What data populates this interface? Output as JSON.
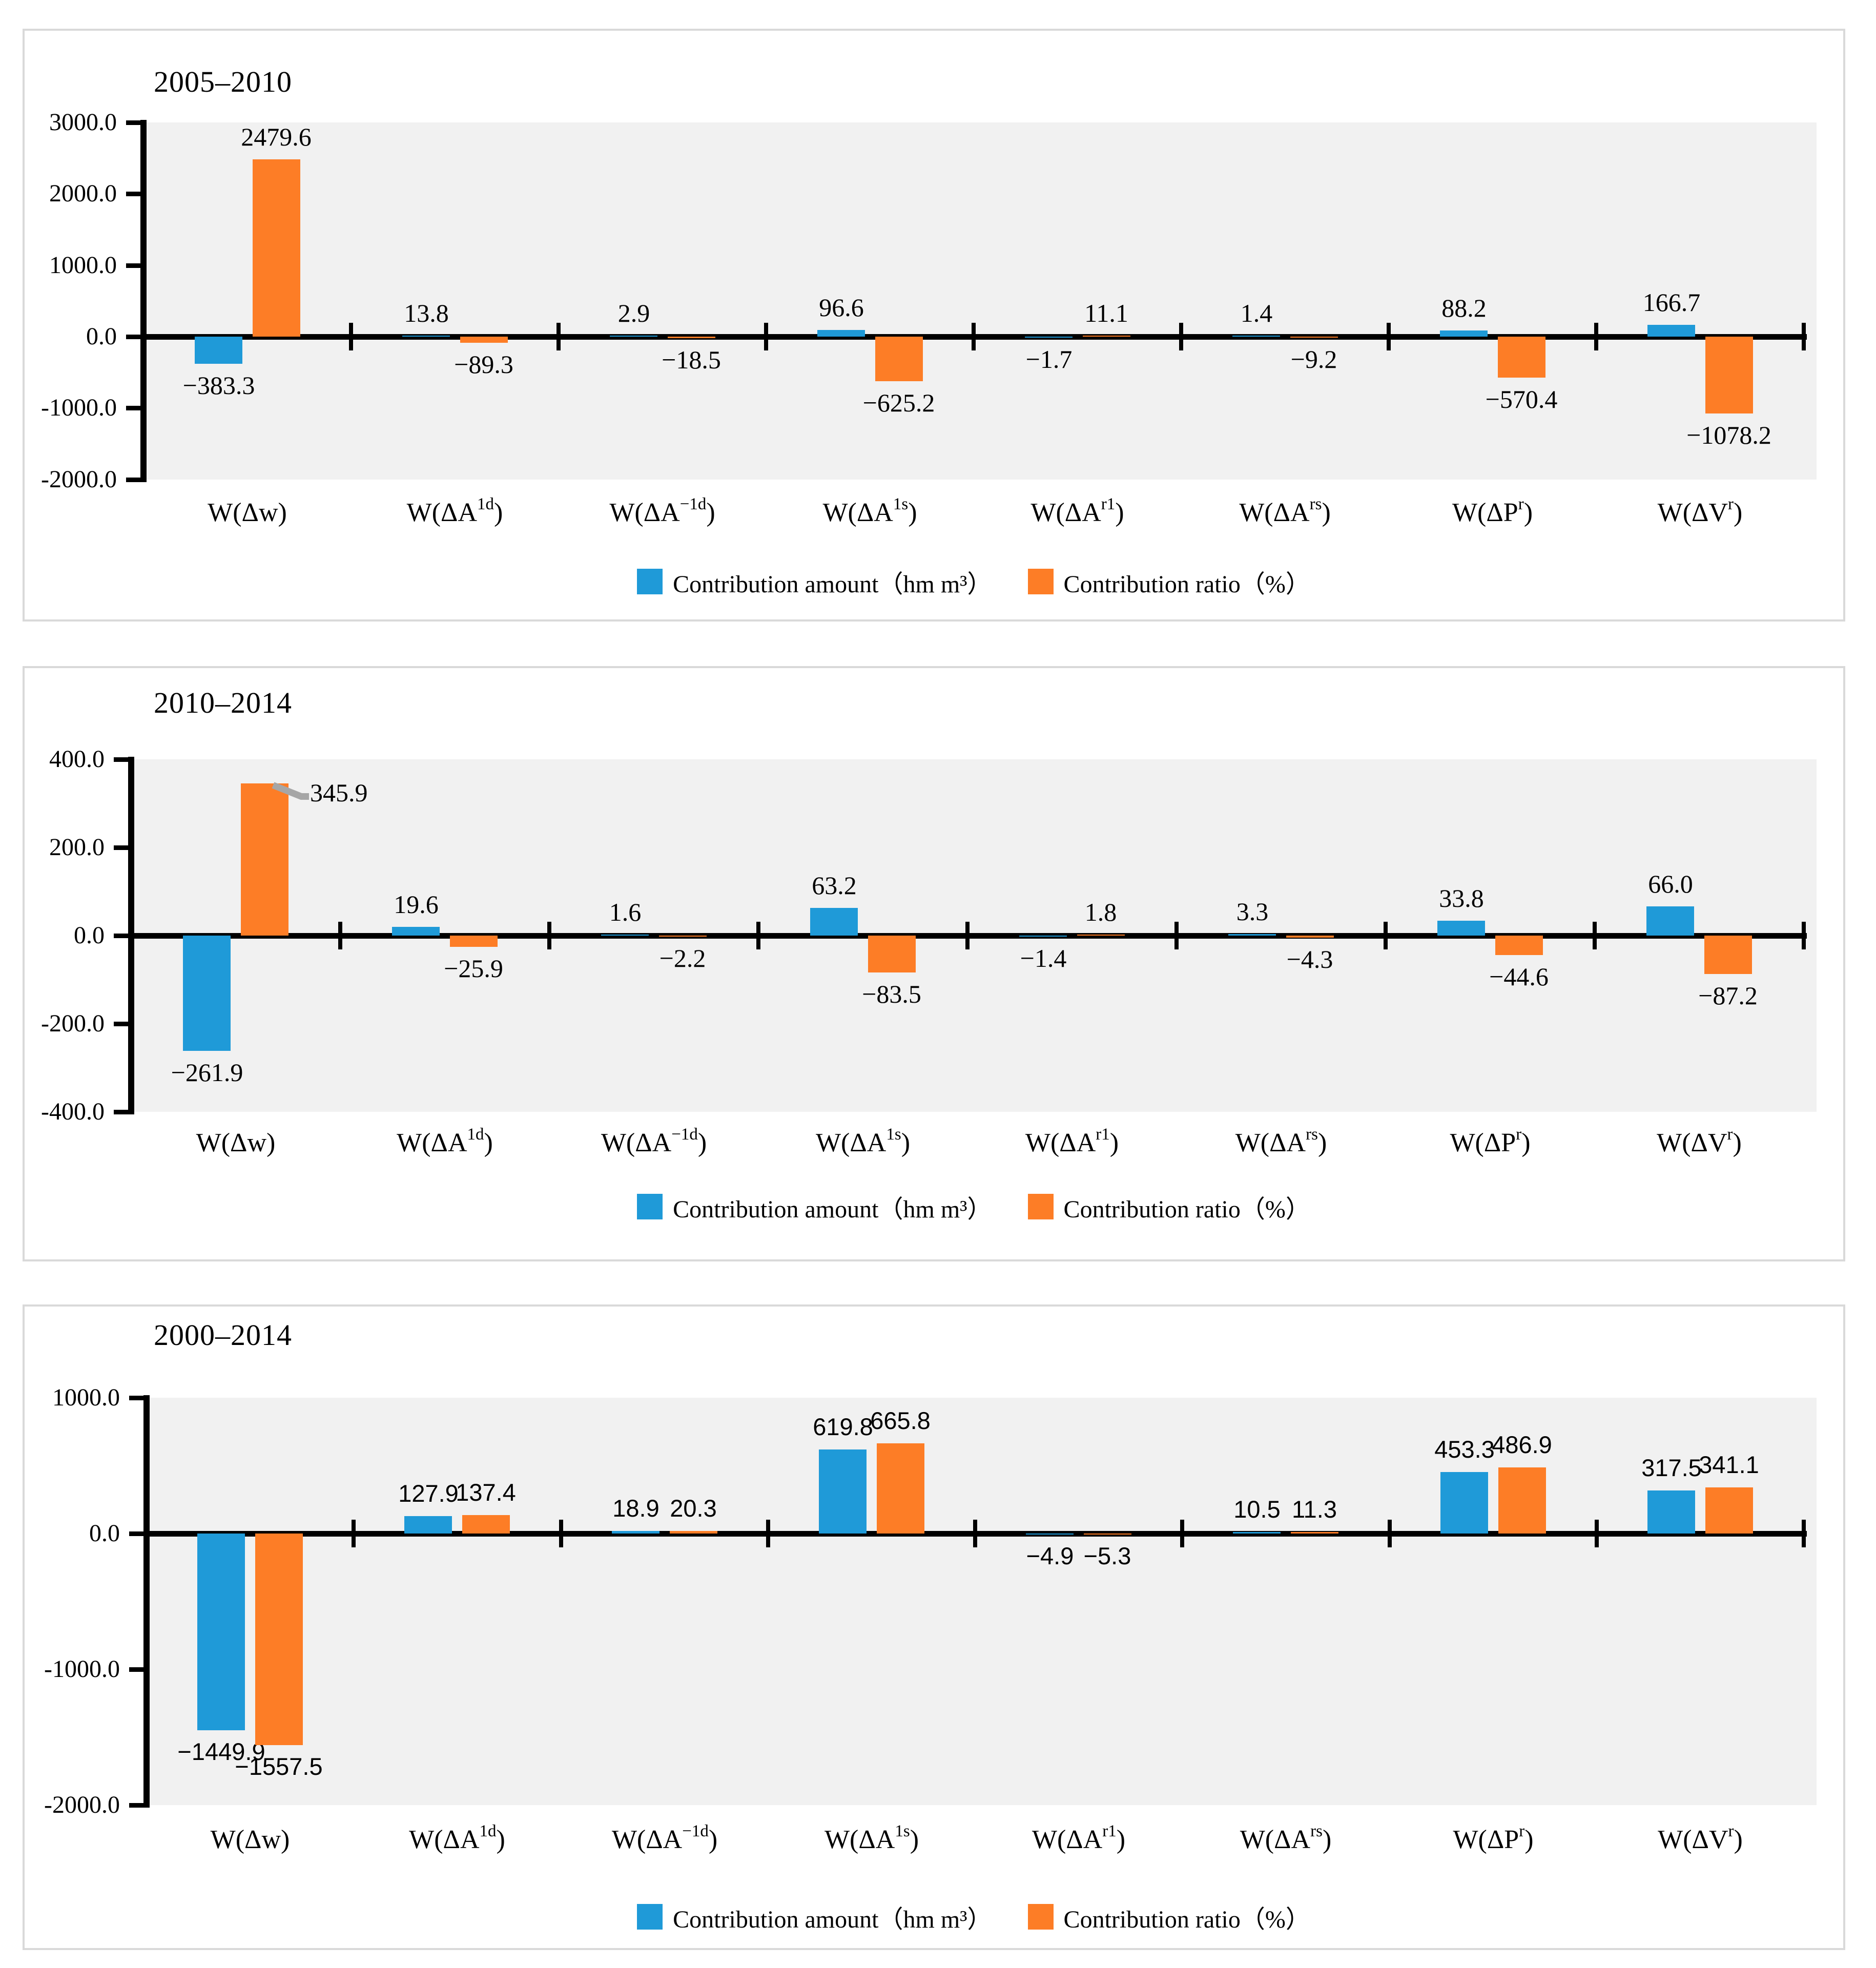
{
  "colors": {
    "amount": "#1F9AD8",
    "ratio": "#FD7D26",
    "plot_bg": "#F1F1F1",
    "panel_border": "#D9D9D9",
    "axis": "#000000",
    "leader_line": "#A6A6A6",
    "text": "#000000",
    "background": "#FFFFFF"
  },
  "legend": {
    "amount_label": "Contribution amount（hm m³）",
    "ratio_label": "Contribution ratio（%）"
  },
  "categories": [
    {
      "pre": "W(Δw",
      "sup": "",
      "post": ")"
    },
    {
      "pre": "W(ΔA",
      "sup": "1d",
      "post": ")"
    },
    {
      "pre": "W(ΔA",
      "sup": "−1d",
      "post": ")"
    },
    {
      "pre": "W(ΔA",
      "sup": "1s",
      "post": ")"
    },
    {
      "pre": "W(ΔA",
      "sup": "r1",
      "post": ")"
    },
    {
      "pre": "W(ΔA",
      "sup": "rs",
      "post": ")"
    },
    {
      "pre": "W(ΔP",
      "sup": "r",
      "post": ")"
    },
    {
      "pre": "W(ΔV",
      "sup": "r",
      "post": ")"
    }
  ],
  "chart_data": [
    {
      "type": "bar",
      "title": "2005–2010",
      "categories": [
        "W(Δw)",
        "W(ΔA1d)",
        "W(ΔA-1d)",
        "W(ΔA1s)",
        "W(ΔAr1)",
        "W(ΔArs)",
        "W(ΔPr)",
        "W(ΔVr)"
      ],
      "series": [
        {
          "name": "Contribution amount (hm m³)",
          "color_key": "amount",
          "values": [
            -383.3,
            13.8,
            2.9,
            96.6,
            -1.7,
            1.4,
            88.2,
            166.7
          ]
        },
        {
          "name": "Contribution ratio (%)",
          "color_key": "ratio",
          "values": [
            2479.6,
            -89.3,
            -18.5,
            -625.2,
            11.1,
            -9.2,
            -570.4,
            -1078.2
          ]
        }
      ],
      "ylim": [
        -2000,
        3000
      ],
      "grid": false,
      "legend_position": "bottom",
      "yticks": [
        {
          "label": "3000.0",
          "value": 3000
        },
        {
          "label": "2000.0",
          "value": 2000
        },
        {
          "label": "1000.0",
          "value": 1000
        },
        {
          "label": "0.0",
          "value": 0
        },
        {
          "label": "-1000.0",
          "value": -1000
        },
        {
          "label": "-2000.0",
          "value": -2000
        }
      ]
    },
    {
      "type": "bar",
      "title": "2010–2014",
      "categories": [
        "W(Δw)",
        "W(ΔA1d)",
        "W(ΔA-1d)",
        "W(ΔA1s)",
        "W(ΔAr1)",
        "W(ΔArs)",
        "W(ΔPr)",
        "W(ΔVr)"
      ],
      "series": [
        {
          "name": "Contribution amount (hm m³)",
          "color_key": "amount",
          "values": [
            -261.9,
            19.6,
            1.6,
            63.2,
            -1.4,
            3.3,
            33.8,
            66.0
          ]
        },
        {
          "name": "Contribution ratio (%)",
          "color_key": "ratio",
          "values": [
            345.9,
            -25.9,
            -2.2,
            -83.5,
            1.8,
            -4.3,
            -44.6,
            -87.2
          ]
        }
      ],
      "ylim": [
        -400,
        400
      ],
      "grid": false,
      "legend_position": "bottom",
      "callout": {
        "series": 1,
        "index": 0
      },
      "yticks": [
        {
          "label": "400.0",
          "value": 400
        },
        {
          "label": "200.0",
          "value": 200
        },
        {
          "label": "0.0",
          "value": 0
        },
        {
          "label": "-200.0",
          "value": -200
        },
        {
          "label": "-400.0",
          "value": -400
        }
      ]
    },
    {
      "type": "bar",
      "title": "2000–2014",
      "categories": [
        "W(Δw)",
        "W(ΔA1d)",
        "W(ΔA-1d)",
        "W(ΔA1s)",
        "W(ΔAr1)",
        "W(ΔArs)",
        "W(ΔPr)",
        "W(ΔVr)"
      ],
      "series": [
        {
          "name": "Contribution amount (hm m³)",
          "color_key": "amount",
          "values": [
            -1449.9,
            127.9,
            18.9,
            619.8,
            -4.9,
            10.5,
            453.3,
            317.5
          ]
        },
        {
          "name": "Contribution ratio (%)",
          "color_key": "ratio",
          "values": [
            -1557.5,
            137.4,
            20.3,
            665.8,
            -5.3,
            11.3,
            486.9,
            341.1
          ]
        }
      ],
      "ylim": [
        -2000,
        1000
      ],
      "grid": false,
      "legend_position": "bottom",
      "yticks": [
        {
          "label": "1000.0",
          "value": 1000
        },
        {
          "label": "0.0",
          "value": 0
        },
        {
          "label": "-1000.0",
          "value": -1000
        },
        {
          "label": "-2000.0",
          "value": -2000
        }
      ]
    }
  ]
}
